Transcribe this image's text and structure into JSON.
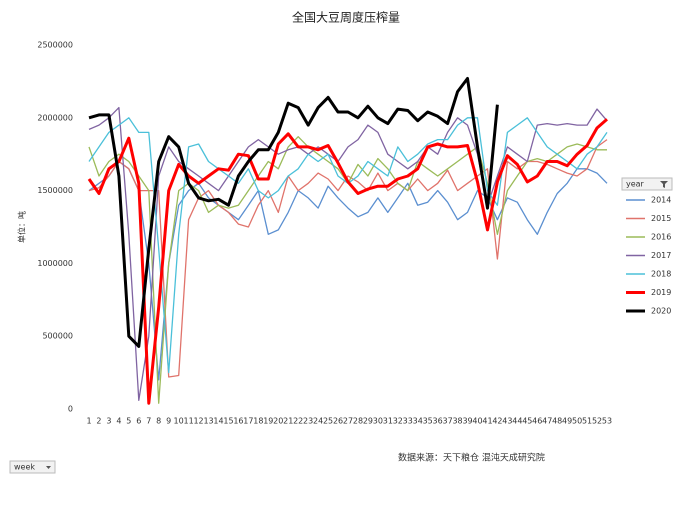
{
  "chart_data": {
    "type": "line",
    "title": "全国大豆周度压榨量",
    "y_label": "单位：吨",
    "source": "数据来源：天下粮仓  混沌天成研究院",
    "legend_title": "year",
    "x_filter": "week",
    "categories": [
      "1",
      "2",
      "3",
      "4",
      "5",
      "6",
      "7",
      "8",
      "9",
      "10",
      "11",
      "12",
      "13",
      "14",
      "15",
      "16",
      "17",
      "18",
      "19",
      "20",
      "21",
      "22",
      "23",
      "24",
      "25",
      "26",
      "27",
      "28",
      "29",
      "30",
      "31",
      "32",
      "33",
      "34",
      "35",
      "36",
      "37",
      "38",
      "39",
      "40",
      "41",
      "42",
      "43",
      "44",
      "45",
      "46",
      "47",
      "48",
      "49",
      "50",
      "51",
      "52",
      "53"
    ],
    "ylim": [
      0,
      2500000
    ],
    "yticks": [
      0,
      500000,
      1000000,
      1500000,
      2000000,
      2500000
    ],
    "series": [
      {
        "name": "2014",
        "color": "#5b8fd0",
        "values": [
          1500000,
          1550000,
          1600000,
          1700000,
          1650000,
          1500000,
          1000000,
          200000,
          1000000,
          1400000,
          1500000,
          1550000,
          1450000,
          1400000,
          1350000,
          1300000,
          1400000,
          1500000,
          1200000,
          1230000,
          1350000,
          1500000,
          1450000,
          1380000,
          1530000,
          1450000,
          1380000,
          1320000,
          1350000,
          1450000,
          1350000,
          1450000,
          1550000,
          1400000,
          1420000,
          1500000,
          1420000,
          1300000,
          1350000,
          1500000,
          1450000,
          1300000,
          1450000,
          1420000,
          1300000,
          1200000,
          1350000,
          1480000,
          1550000,
          1650000,
          1650000,
          1620000,
          1550000
        ]
      },
      {
        "name": "2015",
        "color": "#e0736b",
        "values": [
          1500000,
          1520000,
          1600000,
          1700000,
          1650000,
          1500000,
          1500000,
          1500000,
          220000,
          230000,
          1300000,
          1450000,
          1500000,
          1400000,
          1350000,
          1270000,
          1250000,
          1400000,
          1500000,
          1350000,
          1600000,
          1500000,
          1550000,
          1620000,
          1580000,
          1500000,
          1600000,
          1560000,
          1500000,
          1620000,
          1500000,
          1550000,
          1500000,
          1580000,
          1500000,
          1550000,
          1640000,
          1500000,
          1550000,
          1600000,
          1650000,
          1030000,
          1700000,
          1650000,
          1700000,
          1700000,
          1680000,
          1650000,
          1620000,
          1600000,
          1650000,
          1800000,
          1850000
        ]
      },
      {
        "name": "2016",
        "color": "#9bbb59",
        "values": [
          1800000,
          1600000,
          1700000,
          1750000,
          1700000,
          1600000,
          1500000,
          40000,
          1000000,
          1500000,
          1550000,
          1500000,
          1350000,
          1400000,
          1380000,
          1400000,
          1500000,
          1600000,
          1700000,
          1650000,
          1800000,
          1870000,
          1800000,
          1750000,
          1700000,
          1650000,
          1550000,
          1680000,
          1600000,
          1720000,
          1650000,
          1550000,
          1500000,
          1700000,
          1650000,
          1600000,
          1650000,
          1700000,
          1750000,
          1800000,
          1550000,
          1200000,
          1500000,
          1600000,
          1700000,
          1720000,
          1700000,
          1750000,
          1800000,
          1820000,
          1800000,
          1780000,
          1780000
        ]
      },
      {
        "name": "2017",
        "color": "#8064a2",
        "values": [
          1920000,
          1950000,
          2000000,
          2070000,
          1200000,
          60000,
          500000,
          1600000,
          1800000,
          1700000,
          1650000,
          1600000,
          1550000,
          1500000,
          1600000,
          1700000,
          1800000,
          1850000,
          1800000,
          1750000,
          1780000,
          1800000,
          1750000,
          1800000,
          1750000,
          1700000,
          1800000,
          1850000,
          1950000,
          1900000,
          1750000,
          1700000,
          1650000,
          1700000,
          1800000,
          1750000,
          1900000,
          2000000,
          1950000,
          1750000,
          1400000,
          1600000,
          1800000,
          1750000,
          1700000,
          1950000,
          1960000,
          1950000,
          1960000,
          1950000,
          1950000,
          2060000,
          1980000
        ]
      },
      {
        "name": "2018",
        "color": "#4bc0d9",
        "values": [
          1700000,
          1800000,
          1900000,
          1950000,
          2000000,
          1900000,
          1900000,
          1100000,
          250000,
          1200000,
          1800000,
          1820000,
          1700000,
          1650000,
          1600000,
          1550000,
          1650000,
          1500000,
          1450000,
          1500000,
          1600000,
          1650000,
          1750000,
          1700000,
          1750000,
          1600000,
          1550000,
          1600000,
          1700000,
          1650000,
          1600000,
          1800000,
          1700000,
          1750000,
          1820000,
          1850000,
          1850000,
          1950000,
          2000000,
          2000000,
          1500000,
          1400000,
          1900000,
          1950000,
          2000000,
          1900000,
          1800000,
          1750000,
          1700000,
          1650000,
          1750000,
          1800000,
          1900000
        ]
      },
      {
        "name": "2019",
        "color": "#ff0000",
        "values": [
          1580000,
          1480000,
          1650000,
          1700000,
          1860000,
          1550000,
          40000,
          700000,
          1500000,
          1680000,
          1600000,
          1550000,
          1600000,
          1650000,
          1640000,
          1750000,
          1740000,
          1580000,
          1580000,
          1820000,
          1890000,
          1800000,
          1800000,
          1780000,
          1810000,
          1690000,
          1560000,
          1480000,
          1510000,
          1530000,
          1530000,
          1580000,
          1600000,
          1650000,
          1800000,
          1820000,
          1800000,
          1800000,
          1810000,
          1560000,
          1230000,
          1560000,
          1740000,
          1680000,
          1560000,
          1600000,
          1700000,
          1700000,
          1670000,
          1750000,
          1810000,
          1930000,
          1990000
        ]
      },
      {
        "name": "2020",
        "color": "#000000",
        "values": [
          2000000,
          2020000,
          2020000,
          1600000,
          500000,
          430000,
          1100000,
          1700000,
          1870000,
          1800000,
          1550000,
          1450000,
          1430000,
          1440000,
          1400000,
          1600000,
          1700000,
          1780000,
          1780000,
          1900000,
          2100000,
          2070000,
          1950000,
          2070000,
          2140000,
          2040000,
          2040000,
          2000000,
          2080000,
          2000000,
          1960000,
          2060000,
          2050000,
          1980000,
          2040000,
          2010000,
          1960000,
          2180000,
          2270000,
          1800000,
          1380000,
          2090000,
          null,
          null,
          null,
          null,
          null,
          null,
          null,
          null,
          null,
          null,
          null
        ]
      }
    ]
  }
}
